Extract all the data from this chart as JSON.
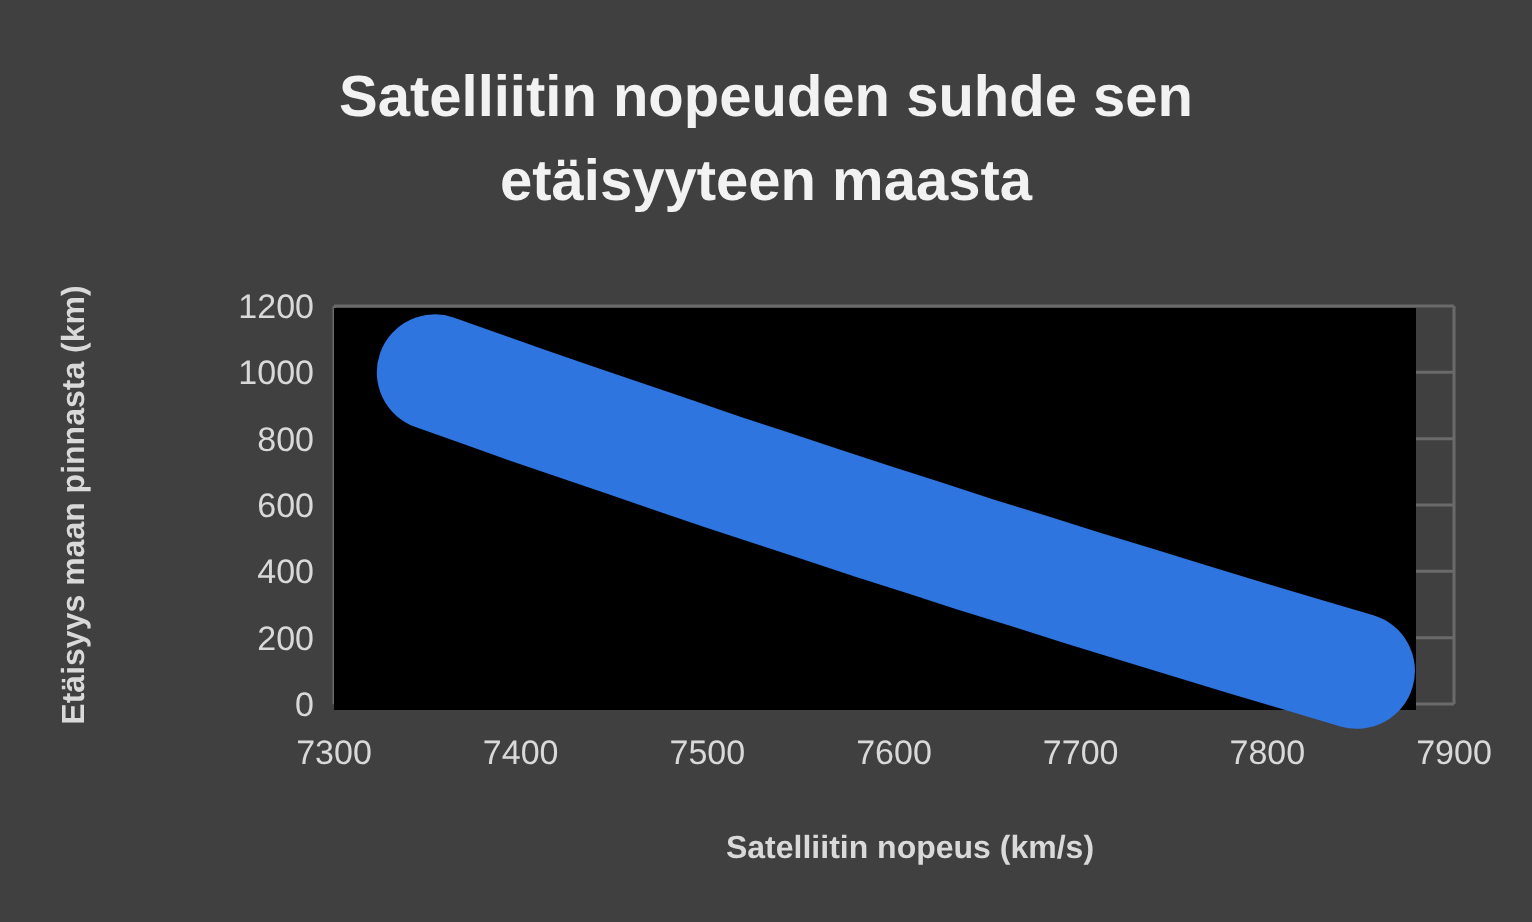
{
  "chart_data": {
    "type": "line",
    "title": "Satelliitin nopeuden suhde sen etäisyyteen maasta",
    "xlabel": "Satelliitin nopeus (km/s)",
    "ylabel": "Etäisyys maan pinnasta (km)",
    "series": [
      {
        "color": "#2f74e0",
        "x": [
          7354,
          7379,
          7404,
          7430,
          7456,
          7482,
          7508,
          7535,
          7562,
          7589,
          7617,
          7644,
          7673,
          7701,
          7730,
          7759,
          7788,
          7818,
          7848
        ],
        "values": [
          1000,
          950,
          900,
          850,
          800,
          750,
          700,
          650,
          600,
          550,
          500,
          450,
          400,
          350,
          300,
          250,
          200,
          150,
          100
        ]
      }
    ],
    "xlim": [
      7300,
      7900
    ],
    "xticks": [
      7300,
      7400,
      7500,
      7600,
      7700,
      7800,
      7900
    ],
    "ylim": [
      0,
      1200
    ],
    "yticks": [
      0,
      200,
      400,
      600,
      800,
      1000,
      1200
    ],
    "grid": "y",
    "line_style": "solid"
  }
}
